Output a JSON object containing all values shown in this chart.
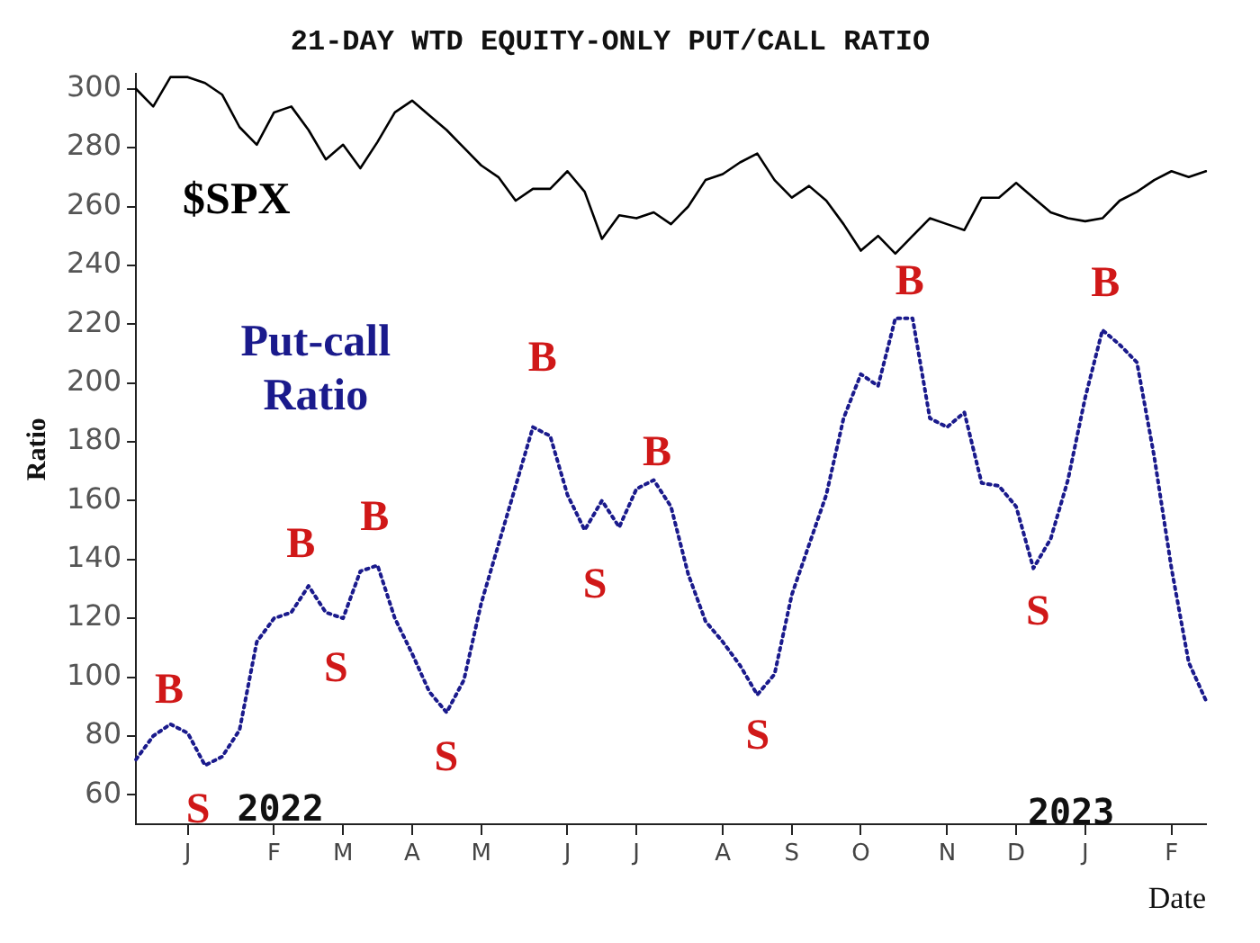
{
  "chart_data": {
    "type": "line",
    "title": "21-DAY WTD EQUITY-ONLY PUT/CALL RATIO",
    "xlabel": "Date",
    "ylabel": "Ratio",
    "categories": [
      null,
      null,
      null,
      "J",
      null,
      null,
      null,
      null,
      "F",
      null,
      null,
      null,
      "M",
      null,
      null,
      null,
      "A",
      null,
      null,
      null,
      "M",
      null,
      null,
      null,
      null,
      "J",
      null,
      null,
      null,
      "J",
      null,
      null,
      null,
      null,
      "A",
      null,
      null,
      null,
      "S",
      null,
      null,
      null,
      "O",
      null,
      null,
      null,
      null,
      "N",
      null,
      null,
      null,
      "D",
      null,
      null,
      null,
      "J",
      null,
      null,
      null,
      null,
      "F",
      null,
      null
    ],
    "ylim": [
      50,
      305
    ],
    "yticks": [
      60,
      80,
      100,
      120,
      140,
      160,
      180,
      200,
      220,
      240,
      260,
      280,
      300
    ],
    "grid": false,
    "legend": false,
    "series": [
      {
        "name": "$SPX",
        "color": "#000000",
        "line_style": "solid",
        "values": [
          300,
          294,
          304,
          304,
          302,
          298,
          287,
          281,
          292,
          294,
          286,
          276,
          281,
          273,
          282,
          292,
          296,
          291,
          286,
          280,
          274,
          270,
          262,
          266,
          266,
          272,
          265,
          249,
          257,
          256,
          258,
          254,
          260,
          269,
          271,
          275,
          278,
          269,
          263,
          267,
          262,
          254,
          245,
          250,
          244,
          250,
          256,
          254,
          252,
          263,
          263,
          268,
          263,
          258,
          256,
          255,
          256,
          262,
          265,
          269,
          272,
          270,
          272
        ]
      },
      {
        "name": "Put-call Ratio",
        "color": "#1a1a8c",
        "line_style": "dotted",
        "values": [
          72,
          80,
          84,
          81,
          70,
          73,
          82,
          112,
          120,
          122,
          131,
          122,
          120,
          136,
          138,
          120,
          108,
          95,
          88,
          99,
          125,
          145,
          165,
          185,
          182,
          162,
          150,
          160,
          151,
          164,
          167,
          158,
          135,
          119,
          112,
          104,
          94,
          101,
          128,
          145,
          162,
          188,
          203,
          199,
          222,
          222,
          188,
          185,
          190,
          166,
          165,
          158,
          137,
          147,
          167,
          195,
          218,
          213,
          207,
          175,
          137,
          105,
          92
        ]
      }
    ],
    "annotations": [
      "B",
      "S",
      "B",
      "S",
      "B",
      "S",
      "B",
      "S",
      "B",
      "S",
      "B",
      "S",
      "B",
      "2022",
      "2023"
    ]
  }
}
